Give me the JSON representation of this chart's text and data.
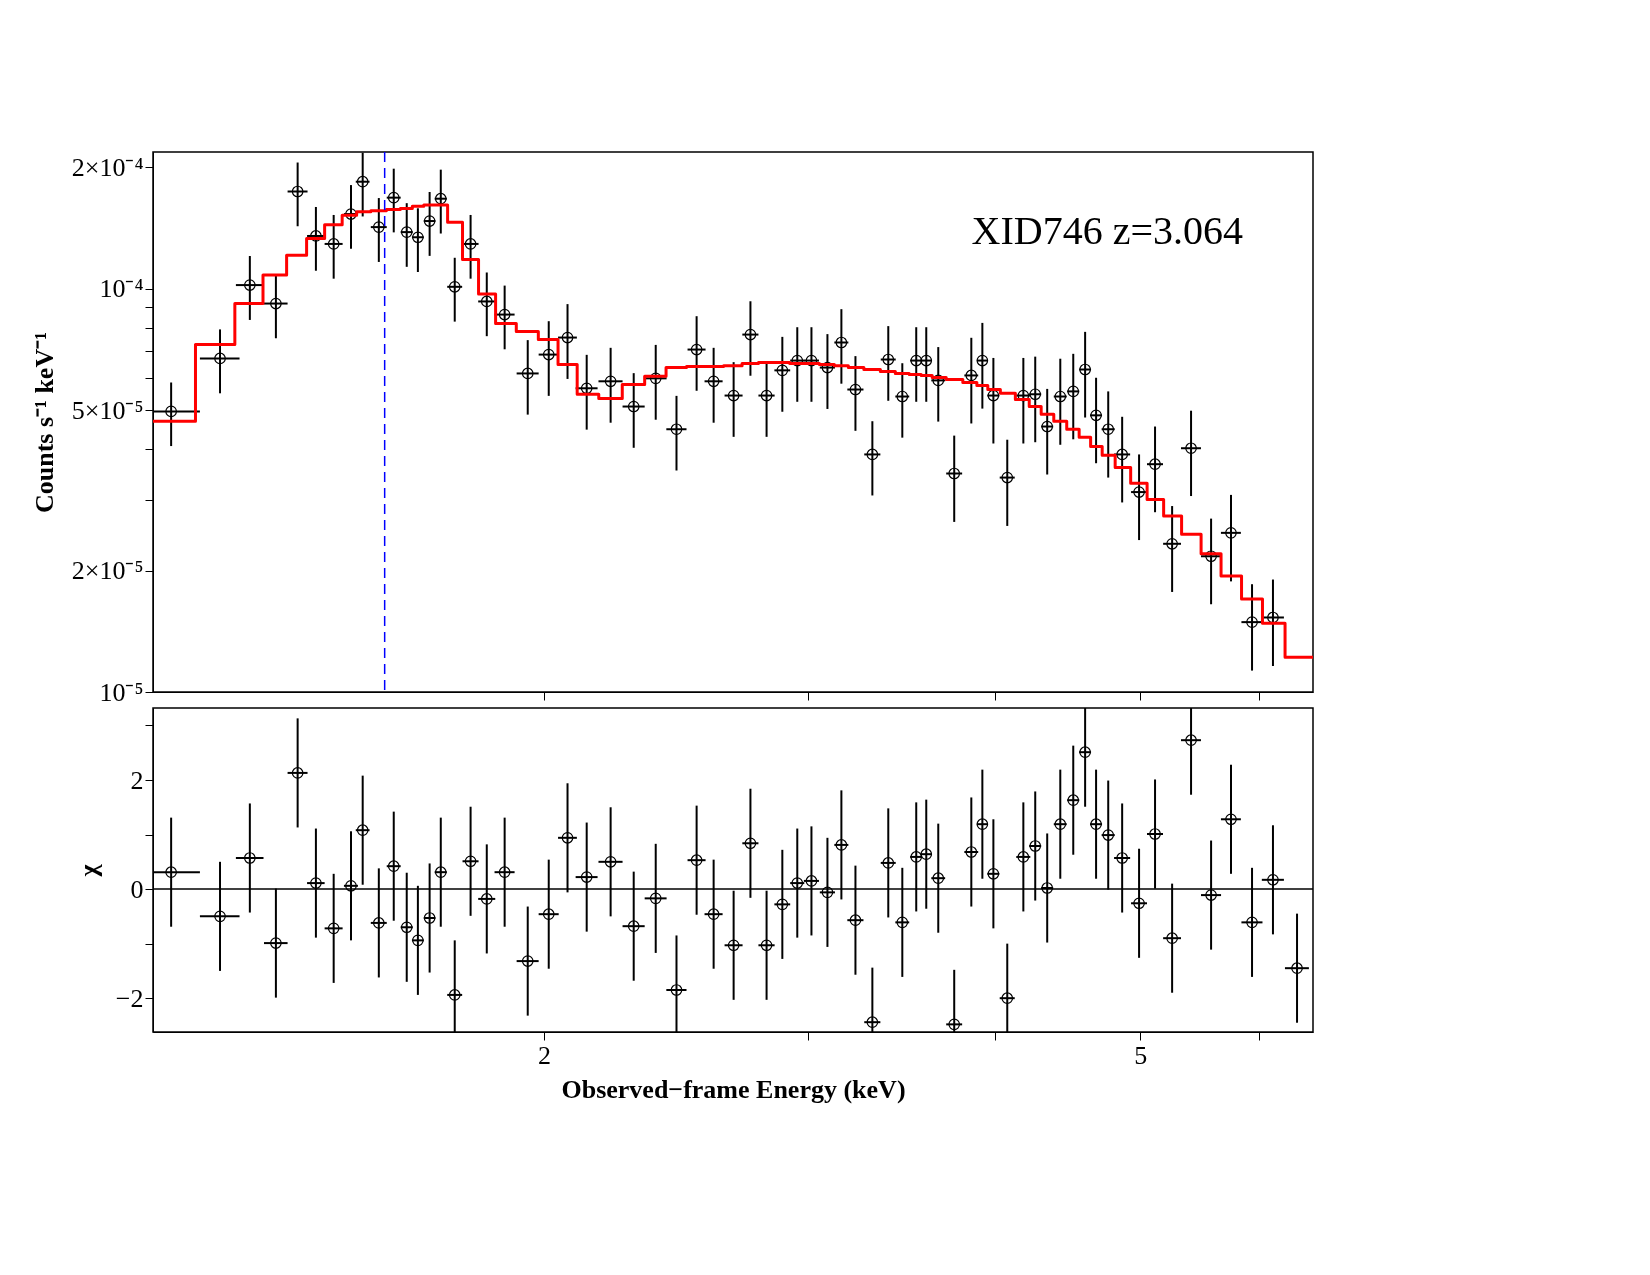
{
  "chart_data": [
    {
      "type": "scatter",
      "ylabel": "Counts s⁻¹ keV⁻¹",
      "annotations": [
        "XID746 z=3.064"
      ],
      "log": "xy",
      "tick_labels": "y",
      "xlim": [
        1.097,
        6.52
      ],
      "ylim": [
        1e-05,
        0.000218
      ],
      "xticks": [
        {
          "value": 2,
          "label": null
        },
        {
          "value": 3,
          "label": null
        },
        {
          "value": 4,
          "label": null
        },
        {
          "value": 5,
          "label": null
        },
        {
          "value": 6,
          "label": null
        }
      ],
      "yticks": [
        {
          "value": 1e-05,
          "label": "10⁻⁵"
        },
        {
          "value": 2e-05,
          "label": "2×10⁻⁵"
        },
        {
          "value": 3e-05,
          "label": null
        },
        {
          "value": 4e-05,
          "label": null
        },
        {
          "value": 5e-05,
          "label": "5×10⁻⁵"
        },
        {
          "value": 6e-05,
          "label": null
        },
        {
          "value": 7e-05,
          "label": null
        },
        {
          "value": 8e-05,
          "label": null
        },
        {
          "value": 9e-05,
          "label": null
        },
        {
          "value": 0.0001,
          "label": "10⁻⁴"
        },
        {
          "value": 0.0002,
          "label": "2×10⁻⁴"
        }
      ],
      "ref_lines": [
        {
          "axis": "x",
          "value": 1.566,
          "color": "#0000ff",
          "line_style": "dashed"
        }
      ],
      "series": [
        {
          "marker": "circle",
          "color": "#000000",
          "x": [
            1.128,
            1.216,
            1.273,
            1.325,
            1.37,
            1.409,
            1.448,
            1.487,
            1.514,
            1.552,
            1.588,
            1.62,
            1.648,
            1.678,
            1.707,
            1.744,
            1.787,
            1.832,
            1.883,
            1.951,
            2.015,
            2.074,
            2.136,
            2.216,
            2.296,
            2.375,
            2.452,
            2.529,
            2.596,
            2.677,
            2.747,
            2.816,
            2.885,
            2.952,
            3.017,
            3.092,
            3.159,
            3.228,
            3.313,
            3.395,
            3.469,
            3.544,
            3.599,
            3.666,
            3.757,
            3.857,
            3.923,
            3.99,
            4.076,
            4.178,
            4.255,
            4.334,
            4.422,
            4.511,
            4.594,
            4.672,
            4.76,
            4.863,
            4.991,
            5.115,
            5.251,
            5.406,
            5.575,
            5.748,
            5.937,
            6.131
          ],
          "values": [
            4.96e-05,
            6.71e-05,
            0.000102,
            9.18e-05,
            0.000174,
            0.000135,
            0.000129,
            0.000153,
            0.000184,
            0.000142,
            0.000168,
            0.000138,
            0.000134,
            0.000147,
            0.000167,
            0.000101,
            0.000129,
            9.29e-05,
            8.62e-05,
            6.16e-05,
            6.86e-05,
            7.56e-05,
            5.66e-05,
            5.89e-05,
            5.1e-05,
            5.99e-05,
            4.48e-05,
            7.06e-05,
            5.89e-05,
            5.43e-05,
            7.69e-05,
            5.43e-05,
            6.27e-05,
            6.63e-05,
            6.63e-05,
            6.37e-05,
            7.35e-05,
            5.62e-05,
            3.88e-05,
            6.67e-05,
            5.4e-05,
            6.63e-05,
            6.63e-05,
            5.92e-05,
            3.48e-05,
            6.09e-05,
            6.63e-05,
            5.43e-05,
            3.4e-05,
            5.43e-05,
            5.47e-05,
            4.55e-05,
            5.4e-05,
            5.56e-05,
            6.3e-05,
            4.85e-05,
            4.48e-05,
            3.88e-05,
            3.13e-05,
            3.67e-05,
            2.33e-05,
            4.02e-05,
            2.17e-05,
            2.48e-05,
            1.49e-05,
            1.53e-05
          ],
          "errors": [
            8.9e-06,
            1.21e-05,
            1.84e-05,
            1.65e-05,
            3.13e-05,
            2.43e-05,
            2.32e-05,
            2.75e-05,
            3.31e-05,
            2.56e-05,
            3.02e-05,
            2.48e-05,
            2.41e-05,
            2.65e-05,
            3.01e-05,
            1.82e-05,
            2.32e-05,
            1.67e-05,
            1.55e-05,
            1.29e-05,
            1.44e-05,
            1.59e-05,
            1.19e-05,
            1.24e-05,
            1.07e-05,
            1.26e-05,
            9.4e-06,
            1.48e-05,
            1.24e-05,
            1.14e-05,
            1.61e-05,
            1.14e-05,
            1.32e-05,
            1.39e-05,
            1.39e-05,
            1.34e-05,
            1.54e-05,
            1.18e-05,
            8.1e-06,
            1.4e-05,
            1.13e-05,
            1.39e-05,
            1.39e-05,
            1.24e-05,
            8.4e-06,
            1.46e-05,
            1.59e-05,
            1.3e-05,
            8.2e-06,
            1.3e-05,
            1.31e-05,
            1.09e-05,
            1.3e-05,
            1.33e-05,
            1.51e-05,
            1.16e-05,
            1.08e-05,
            9.3e-06,
            7.5e-06,
            8.8e-06,
            5.6e-06,
            9.6e-06,
            5.2e-06,
            6e-06,
            3.6e-06,
            3.7e-06
          ],
          "xerrors": [
            [
              1.097,
              1.179
            ],
            0.037,
            0.027,
            0.024,
            0.021,
            0.019,
            0.02,
            0.016,
            0.016,
            0.019,
            0.017,
            0.015,
            0.015,
            0.015,
            0.016,
            0.02,
            0.022,
            0.024,
            0.029,
            0.033,
            0.031,
            0.03,
            0.036,
            0.041,
            0.039,
            0.04,
            0.038,
            0.035,
            0.036,
            0.037,
            0.034,
            0.035,
            0.035,
            0.032,
            0.035,
            0.036,
            0.034,
            0.04,
            0.041,
            0.039,
            0.037,
            0.033,
            0.03,
            0.039,
            0.046,
            0.041,
            0.033,
            0.037,
            0.047,
            0.045,
            0.039,
            0.04,
            0.044,
            0.042,
            0.042,
            0.043,
            0.048,
            0.06,
            0.061,
            0.063,
            0.072,
            0.083,
            0.086,
            0.088,
            0.096,
            0.104
          ]
        },
        {
          "type": "step",
          "color": "#ff0000",
          "x": [
            1.097,
            1.171,
            1.244,
            1.299,
            1.347,
            1.389,
            1.428,
            1.467,
            1.5,
            1.533,
            1.57,
            1.604,
            1.634,
            1.663,
            1.692,
            1.725,
            1.765,
            1.809,
            1.857,
            1.917,
            1.983,
            2.044,
            2.105,
            2.176,
            2.256,
            2.335,
            2.413,
            2.49,
            2.562,
            2.636,
            2.712,
            2.781,
            2.85,
            2.918,
            2.984,
            3.054,
            3.125,
            3.193,
            3.27,
            3.354,
            3.432,
            3.506,
            3.571,
            3.632,
            3.711,
            3.807,
            3.89,
            3.956,
            4.033,
            4.127,
            4.216,
            4.294,
            4.378,
            4.466,
            4.552,
            4.633,
            4.716,
            4.811,
            4.927,
            5.053,
            5.183,
            5.328,
            5.49,
            5.661,
            5.842,
            6.033,
            6.246,
            6.52
          ],
          "values": [
            4.69e-05,
            7.27e-05,
            9.18e-05,
            0.000108,
            0.000121,
            0.000133,
            0.000144,
            0.000152,
            0.000155,
            0.000156,
            0.000157,
            0.000158,
            0.00016,
            0.000161,
            0.000161,
            0.000146,
            0.000118,
            9.7e-05,
            8.19e-05,
            7.83e-05,
            7.48e-05,
            6.48e-05,
            5.47e-05,
            5.34e-05,
            5.78e-05,
            6.06e-05,
            6.37e-05,
            6.41e-05,
            6.41e-05,
            6.44e-05,
            6.52e-05,
            6.56e-05,
            6.56e-05,
            6.52e-05,
            6.52e-05,
            6.48e-05,
            6.44e-05,
            6.37e-05,
            6.3e-05,
            6.23e-05,
            6.16e-05,
            6.12e-05,
            6.09e-05,
            6.02e-05,
            5.95e-05,
            5.85e-05,
            5.75e-05,
            5.62e-05,
            5.5e-05,
            5.31e-05,
            5.1e-05,
            4.88e-05,
            4.69e-05,
            4.48e-05,
            4.28e-05,
            4.06e-05,
            3.86e-05,
            3.6e-05,
            3.29e-05,
            3e-05,
            2.73e-05,
            2.46e-05,
            2.2e-05,
            1.94e-05,
            1.7e-05,
            1.48e-05,
            1.22e-05,
            1.22e-05
          ]
        }
      ]
    },
    {
      "type": "scatter",
      "xlabel": "Observed−frame Energy (keV)",
      "ylabel": "χ",
      "log": "x",
      "xlim": [
        1.097,
        6.52
      ],
      "ylim": [
        -2.62,
        3.32
      ],
      "xticks": [
        2,
        {
          "value": 3,
          "label": null
        },
        {
          "value": 4,
          "label": null
        },
        5,
        {
          "value": 6,
          "label": null
        }
      ],
      "yticks": [
        {
          "value": -2,
          "label": "−2"
        },
        {
          "value": -1,
          "label": null
        },
        0,
        {
          "value": 1,
          "label": null
        },
        2,
        {
          "value": 3,
          "label": null
        }
      ],
      "ref_lines": [
        {
          "axis": "y",
          "value": 0,
          "color": "#000000",
          "line_style": "solid"
        }
      ],
      "series": [
        {
          "marker": "circle",
          "color": "#000000",
          "x": [
            1.128,
            1.216,
            1.273,
            1.325,
            1.37,
            1.409,
            1.448,
            1.487,
            1.514,
            1.552,
            1.588,
            1.62,
            1.648,
            1.678,
            1.707,
            1.744,
            1.787,
            1.832,
            1.883,
            1.951,
            2.015,
            2.074,
            2.136,
            2.216,
            2.296,
            2.375,
            2.452,
            2.529,
            2.596,
            2.677,
            2.747,
            2.816,
            2.885,
            2.952,
            3.017,
            3.092,
            3.159,
            3.228,
            3.313,
            3.395,
            3.469,
            3.544,
            3.599,
            3.666,
            3.757,
            3.857,
            3.923,
            3.99,
            4.076,
            4.178,
            4.255,
            4.334,
            4.422,
            4.511,
            4.594,
            4.672,
            4.76,
            4.863,
            4.991,
            5.115,
            5.251,
            5.406,
            5.575,
            5.748,
            5.937,
            6.131,
            6.362
          ],
          "values": [
            0.31,
            -0.5,
            0.57,
            -0.99,
            2.13,
            0.11,
            -0.72,
            0.06,
            1.08,
            -0.62,
            0.42,
            -0.7,
            -0.94,
            -0.53,
            0.31,
            -1.94,
            0.51,
            -0.18,
            0.31,
            -1.32,
            -0.46,
            0.94,
            0.22,
            0.5,
            -0.68,
            -0.17,
            -1.85,
            0.53,
            -0.46,
            -1.03,
            0.84,
            -1.03,
            -0.28,
            0.11,
            0.15,
            -0.06,
            0.81,
            -0.57,
            -2.44,
            0.48,
            -0.61,
            0.59,
            0.64,
            0.2,
            -2.48,
            0.68,
            1.19,
            0.28,
            -2.0,
            0.59,
            0.79,
            0.02,
            1.19,
            1.63,
            2.51,
            1.19,
            0.99,
            0.57,
            -0.26,
            1.01,
            -0.9,
            2.73,
            -0.11,
            1.28,
            -0.61,
            0.17,
            -1.45
          ],
          "errors": [
            1,
            1,
            1,
            1,
            1,
            1,
            1,
            1,
            1,
            1,
            1,
            1,
            1,
            1,
            1,
            [
              -2.62,
              -0.94
            ],
            1,
            1,
            1,
            1,
            1,
            1,
            1,
            1,
            1,
            1,
            [
              -2.62,
              -0.85
            ],
            1,
            1,
            1,
            1,
            1,
            1,
            1,
            1,
            1,
            1,
            1,
            [
              -2.62,
              -1.44
            ],
            1,
            1,
            1,
            1,
            1,
            [
              -2.62,
              -1.48
            ],
            1,
            1,
            1,
            [
              -2.62,
              -1.0
            ],
            1,
            1,
            1,
            1,
            1,
            [
              1.51,
              3.32
            ],
            1,
            1,
            1,
            1,
            1,
            1,
            [
              1.73,
              3.32
            ],
            1,
            1,
            1,
            1,
            1
          ],
          "xerrors": [
            [
              1.097,
              1.179
            ],
            0.037,
            0.027,
            0.024,
            0.021,
            0.019,
            0.02,
            0.016,
            0.016,
            0.019,
            0.017,
            0.015,
            0.015,
            0.015,
            0.016,
            0.02,
            0.022,
            0.024,
            0.029,
            0.033,
            0.031,
            0.03,
            0.036,
            0.041,
            0.039,
            0.04,
            0.038,
            0.035,
            0.036,
            0.037,
            0.034,
            0.035,
            0.035,
            0.032,
            0.035,
            0.036,
            0.034,
            0.04,
            0.041,
            0.039,
            0.037,
            0.033,
            0.03,
            0.039,
            0.046,
            0.041,
            0.033,
            0.037,
            0.047,
            0.045,
            0.039,
            0.04,
            0.044,
            0.042,
            0.042,
            0.043,
            0.048,
            0.06,
            0.061,
            0.063,
            0.072,
            0.083,
            0.086,
            0.088,
            0.096,
            0.104,
            0.117
          ]
        }
      ]
    }
  ]
}
